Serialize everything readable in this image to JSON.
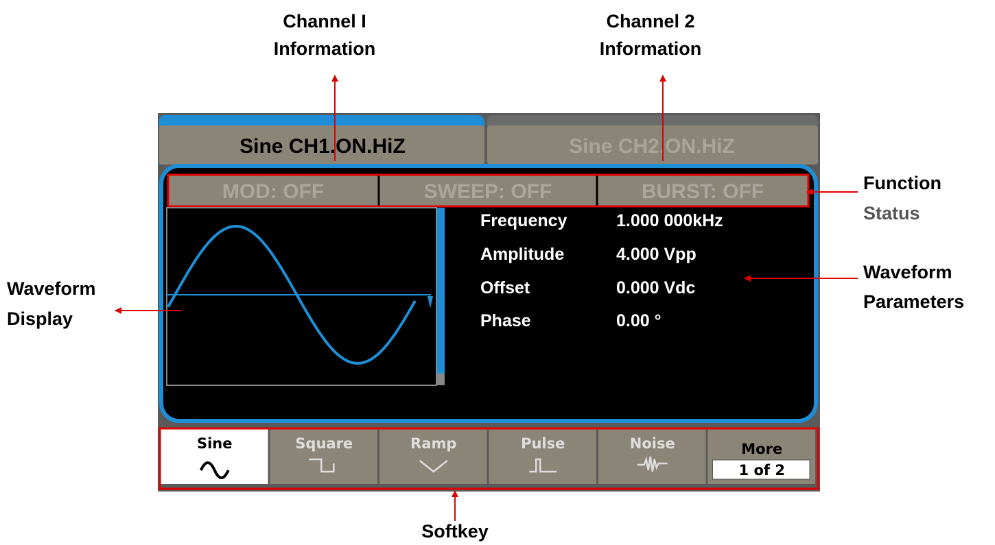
{
  "callouts": [
    {
      "lines": [
        "Channel I",
        "Information"
      ]
    },
    {
      "lines": [
        "Channel 2",
        "Information"
      ]
    },
    {
      "lines": [
        "Function",
        "Status"
      ]
    },
    {
      "lines": [
        "Waveform",
        "Parameters"
      ]
    },
    {
      "lines": [
        "Waveform",
        "Display"
      ]
    },
    {
      "lines": [
        "Softkey"
      ]
    }
  ],
  "channels": [
    "Sine CH1.ON.HiZ",
    "Sine CH2.ON.HiZ"
  ],
  "status": [
    "MOD:  OFF",
    "SWEEP:  OFF",
    "BURST:  OFF"
  ],
  "parameters": [
    {
      "name": "Frequency",
      "value": "1.000 000kHz"
    },
    {
      "name": "Amplitude",
      "value": "4.000 Vpp"
    },
    {
      "name": "Offset",
      "value": "0.000 Vdc"
    },
    {
      "name": "Phase",
      "value": "0.00 °"
    }
  ],
  "softkeys": [
    {
      "label": "Sine"
    },
    {
      "label": "Square"
    },
    {
      "label": "Ramp"
    },
    {
      "label": "Pulse"
    },
    {
      "label": "Noise"
    },
    {
      "label": "More",
      "page": "1 of 2"
    }
  ]
}
